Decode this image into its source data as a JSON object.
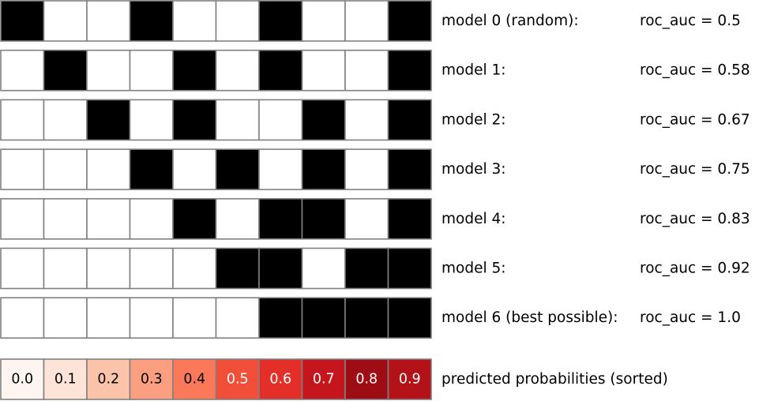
{
  "models": [
    {
      "label": "model 0 (random):",
      "score": "roc_auc = 0.5",
      "cells": [
        1,
        0,
        0,
        1,
        0,
        0,
        1,
        0,
        0,
        1
      ]
    },
    {
      "label": "model 1:",
      "score": "roc_auc = 0.58",
      "cells": [
        0,
        1,
        0,
        0,
        1,
        0,
        1,
        0,
        0,
        1
      ]
    },
    {
      "label": "model 2:",
      "score": "roc_auc = 0.67",
      "cells": [
        0,
        0,
        1,
        0,
        1,
        0,
        0,
        1,
        0,
        1
      ]
    },
    {
      "label": "model 3:",
      "score": "roc_auc = 0.75",
      "cells": [
        0,
        0,
        0,
        1,
        0,
        1,
        0,
        1,
        0,
        1
      ]
    },
    {
      "label": "model 4:",
      "score": "roc_auc = 0.83",
      "cells": [
        0,
        0,
        0,
        0,
        1,
        0,
        1,
        1,
        0,
        1
      ]
    },
    {
      "label": "model 5:",
      "score": "roc_auc = 0.92",
      "cells": [
        0,
        0,
        0,
        0,
        0,
        1,
        1,
        0,
        1,
        1
      ]
    },
    {
      "label": "model 6 (best possible):",
      "score": "roc_auc = 1.0",
      "cells": [
        0,
        0,
        0,
        0,
        0,
        0,
        1,
        1,
        1,
        1
      ]
    }
  ],
  "probabilities": {
    "caption": "predicted probabilities (sorted)",
    "values": [
      "0.0",
      "0.1",
      "0.2",
      "0.3",
      "0.4",
      "0.5",
      "0.6",
      "0.7",
      "0.8",
      "0.9"
    ]
  },
  "colors": {
    "positive_cell": "#000000",
    "negative_cell": "#ffffff",
    "cell_border": "#808080",
    "probability_fills": [
      "#fff5f0",
      "#fee4d8",
      "#fcc3ab",
      "#fc9e80",
      "#fb7858",
      "#f14f39",
      "#e32f27",
      "#c4161c",
      "#9e0d14",
      "#b21218"
    ],
    "probability_text": [
      "#000000",
      "#000000",
      "#000000",
      "#000000",
      "#000000",
      "#ffffff",
      "#ffffff",
      "#ffffff",
      "#ffffff",
      "#ffffff"
    ]
  }
}
